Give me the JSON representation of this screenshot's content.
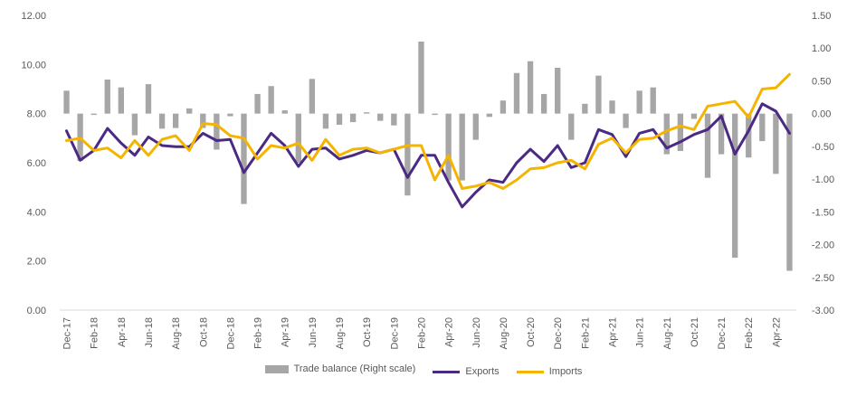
{
  "chart_data": {
    "type": "bar+line",
    "title": "",
    "colors": {
      "trade_balance": "#a6a6a6",
      "exports": "#4b2a84",
      "imports": "#f5b400",
      "axis": "#595959",
      "grid": "#d9d9d9"
    },
    "categories": [
      "Dec-17",
      "Jan-18",
      "Feb-18",
      "Mar-18",
      "Apr-18",
      "May-18",
      "Jun-18",
      "Jul-18",
      "Aug-18",
      "Sep-18",
      "Oct-18",
      "Nov-18",
      "Dec-18",
      "Jan-19",
      "Feb-19",
      "Mar-19",
      "Apr-19",
      "May-19",
      "Jun-19",
      "Jul-19",
      "Aug-19",
      "Sep-19",
      "Oct-19",
      "Nov-19",
      "Dec-19",
      "Jan-20",
      "Feb-20",
      "Mar-20",
      "Apr-20",
      "May-20",
      "Jun-20",
      "Jul-20",
      "Aug-20",
      "Sep-20",
      "Oct-20",
      "Nov-20",
      "Dec-20",
      "Jan-21",
      "Feb-21",
      "Mar-21",
      "Apr-21",
      "May-21",
      "Jun-21",
      "Jul-21",
      "Aug-21",
      "Sep-21",
      "Oct-21",
      "Nov-21",
      "Dec-21",
      "Jan-22",
      "Feb-22",
      "Mar-22",
      "Apr-22",
      "May-22"
    ],
    "x_tick_labels": [
      "Dec-17",
      "Feb-18",
      "Apr-18",
      "Jun-18",
      "Aug-18",
      "Oct-18",
      "Dec-18",
      "Feb-19",
      "Apr-19",
      "Jun-19",
      "Aug-19",
      "Oct-19",
      "Dec-19",
      "Feb-20",
      "Apr-20",
      "Jun-20",
      "Aug-20",
      "Oct-20",
      "Dec-20",
      "Feb-21",
      "Apr-21",
      "Jun-21",
      "Aug-21",
      "Oct-21",
      "Dec-21",
      "Feb-22",
      "Apr-22"
    ],
    "y_left": {
      "min": 0,
      "max": 12,
      "step": 2,
      "tick_labels": [
        "0.00",
        "2.00",
        "4.00",
        "6.00",
        "8.00",
        "10.00",
        "12.00"
      ]
    },
    "y_right": {
      "min": -3,
      "max": 1.5,
      "step": 0.5,
      "tick_labels": [
        "-3.00",
        "-2.50",
        "-2.00",
        "-1.50",
        "-1.00",
        "-0.50",
        "0.00",
        "0.50",
        "1.00",
        "1.50"
      ]
    },
    "series": [
      {
        "name": "Trade balance (Right scale)",
        "type": "bar",
        "axis": "right",
        "values": [
          0.35,
          -0.72,
          -0.02,
          0.52,
          0.4,
          -0.33,
          0.45,
          -0.23,
          -0.22,
          0.08,
          -0.22,
          -0.55,
          -0.04,
          -1.38,
          0.3,
          0.42,
          0.05,
          -0.75,
          0.53,
          -0.23,
          -0.17,
          -0.13,
          0.02,
          -0.11,
          -0.18,
          -1.25,
          1.1,
          -0.02,
          -1.02,
          -1.02,
          -0.4,
          -0.05,
          0.2,
          0.62,
          0.8,
          0.3,
          0.7,
          -0.4,
          0.15,
          0.58,
          0.2,
          -0.22,
          0.35,
          0.4,
          -0.62,
          -0.57,
          -0.08,
          -0.98,
          -0.62,
          -2.2,
          -0.67,
          -0.42,
          -0.92,
          -2.4
        ]
      },
      {
        "name": "Exports",
        "type": "line",
        "axis": "left",
        "values": [
          7.3,
          6.1,
          6.5,
          7.4,
          6.8,
          6.3,
          7.05,
          6.7,
          6.65,
          6.65,
          7.2,
          6.9,
          6.95,
          5.6,
          6.4,
          7.2,
          6.7,
          5.85,
          6.55,
          6.6,
          6.15,
          6.3,
          6.5,
          6.4,
          6.55,
          5.4,
          6.3,
          6.3,
          5.2,
          4.2,
          4.8,
          5.3,
          5.2,
          6.0,
          6.55,
          6.05,
          6.7,
          5.8,
          6.0,
          7.35,
          7.15,
          6.25,
          7.2,
          7.35,
          6.6,
          6.85,
          7.15,
          7.35,
          7.9,
          6.35,
          7.3,
          8.4,
          8.1,
          7.2
        ]
      },
      {
        "name": "Imports",
        "type": "line",
        "axis": "left",
        "values": [
          6.9,
          7.0,
          6.5,
          6.6,
          6.2,
          6.9,
          6.3,
          6.95,
          7.1,
          6.5,
          7.6,
          7.55,
          7.1,
          7.0,
          6.15,
          6.7,
          6.6,
          6.8,
          6.1,
          6.95,
          6.3,
          6.55,
          6.6,
          6.4,
          6.55,
          6.7,
          6.7,
          5.3,
          6.3,
          4.95,
          5.05,
          5.2,
          4.95,
          5.3,
          5.75,
          5.8,
          6.0,
          6.1,
          5.75,
          6.75,
          7.0,
          6.4,
          6.95,
          7.0,
          7.3,
          7.5,
          7.35,
          8.3,
          8.4,
          8.5,
          7.85,
          9.0,
          9.05,
          9.6
        ]
      }
    ],
    "legend": {
      "position": "bottom",
      "entries": [
        "Trade balance (Right scale)",
        "Exports",
        "Imports"
      ]
    }
  }
}
